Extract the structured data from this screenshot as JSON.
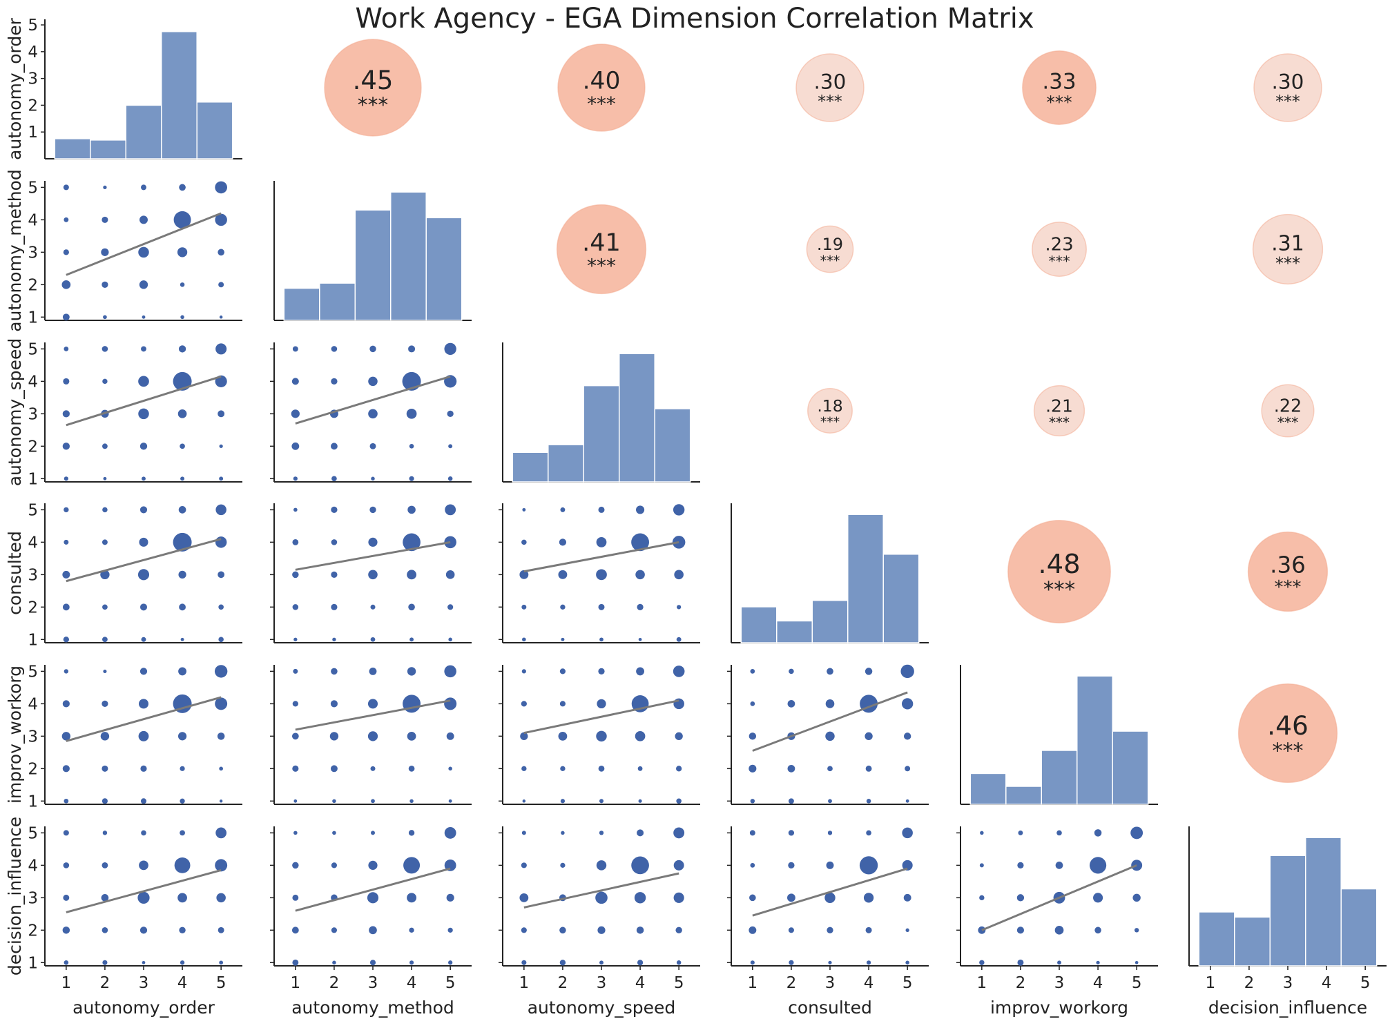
{
  "chart_data": {
    "type": "scatter",
    "title": "Work Agency - EGA Dimension Correlation Matrix",
    "variables": [
      "autonomy_order",
      "autonomy_method",
      "autonomy_speed",
      "consulted",
      "improv_workorg",
      "decision_influence"
    ],
    "tick_values": [
      1,
      2,
      3,
      4,
      5
    ],
    "first_hist_yticks": [
      1,
      2,
      3,
      4,
      5
    ],
    "first_hist_ylim": [
      0,
      5
    ],
    "significance_label": "***",
    "correlations": [
      {
        "row": 0,
        "col": 1,
        "label": ".45",
        "value": 0.45
      },
      {
        "row": 0,
        "col": 2,
        "label": ".40",
        "value": 0.4
      },
      {
        "row": 0,
        "col": 3,
        "label": ".30",
        "value": 0.3
      },
      {
        "row": 0,
        "col": 4,
        "label": ".33",
        "value": 0.33
      },
      {
        "row": 0,
        "col": 5,
        "label": ".30",
        "value": 0.3
      },
      {
        "row": 1,
        "col": 2,
        "label": ".41",
        "value": 0.41
      },
      {
        "row": 1,
        "col": 3,
        "label": ".19",
        "value": 0.19
      },
      {
        "row": 1,
        "col": 4,
        "label": ".23",
        "value": 0.23
      },
      {
        "row": 1,
        "col": 5,
        "label": ".31",
        "value": 0.31
      },
      {
        "row": 2,
        "col": 3,
        "label": ".18",
        "value": 0.18
      },
      {
        "row": 2,
        "col": 4,
        "label": ".21",
        "value": 0.21
      },
      {
        "row": 2,
        "col": 5,
        "label": ".22",
        "value": 0.22
      },
      {
        "row": 3,
        "col": 4,
        "label": ".48",
        "value": 0.48
      },
      {
        "row": 3,
        "col": 5,
        "label": ".36",
        "value": 0.36
      },
      {
        "row": 4,
        "col": 5,
        "label": ".46",
        "value": 0.46
      }
    ],
    "histograms": [
      [
        0.75,
        0.7,
        2.0,
        4.75,
        2.12
      ],
      [
        0.25,
        0.29,
        0.86,
        1.0,
        0.8
      ],
      [
        0.23,
        0.29,
        0.75,
        1.0,
        0.57
      ],
      [
        0.28,
        0.17,
        0.33,
        1.0,
        0.69
      ],
      [
        0.24,
        0.14,
        0.42,
        1.0,
        0.57
      ],
      [
        0.42,
        0.38,
        0.86,
        1.0,
        0.6
      ]
    ],
    "regressions": [
      {
        "row": 1,
        "col": 0,
        "y_at_1": 2.3,
        "y_at_5": 4.2
      },
      {
        "row": 2,
        "col": 0,
        "y_at_1": 2.65,
        "y_at_5": 4.15
      },
      {
        "row": 2,
        "col": 1,
        "y_at_1": 2.7,
        "y_at_5": 4.15
      },
      {
        "row": 3,
        "col": 0,
        "y_at_1": 2.8,
        "y_at_5": 4.1
      },
      {
        "row": 3,
        "col": 1,
        "y_at_1": 3.15,
        "y_at_5": 4.0
      },
      {
        "row": 3,
        "col": 2,
        "y_at_1": 3.1,
        "y_at_5": 4.0
      },
      {
        "row": 4,
        "col": 0,
        "y_at_1": 2.85,
        "y_at_5": 4.2
      },
      {
        "row": 4,
        "col": 1,
        "y_at_1": 3.2,
        "y_at_5": 4.1
      },
      {
        "row": 4,
        "col": 2,
        "y_at_1": 3.1,
        "y_at_5": 4.1
      },
      {
        "row": 4,
        "col": 3,
        "y_at_1": 2.55,
        "y_at_5": 4.35
      },
      {
        "row": 5,
        "col": 0,
        "y_at_1": 2.55,
        "y_at_5": 3.85
      },
      {
        "row": 5,
        "col": 1,
        "y_at_1": 2.6,
        "y_at_5": 3.9
      },
      {
        "row": 5,
        "col": 2,
        "y_at_1": 2.7,
        "y_at_5": 3.75
      },
      {
        "row": 5,
        "col": 3,
        "y_at_1": 2.45,
        "y_at_5": 3.9
      },
      {
        "row": 5,
        "col": 4,
        "y_at_1": 2.0,
        "y_at_5": 4.0
      }
    ],
    "xlim": [
      0.45,
      5.55
    ],
    "ylim": [
      0.9,
      5.2
    ],
    "grid": false,
    "legend": "none",
    "colors": {
      "points": "#4063a8",
      "bars": "#7896c4",
      "bar_edge": "#ffffff",
      "regression": "#7a7a7a",
      "corr_strong": "#f4a88c",
      "corr_weak": "#f3cdbf",
      "axis": "#222222"
    }
  }
}
